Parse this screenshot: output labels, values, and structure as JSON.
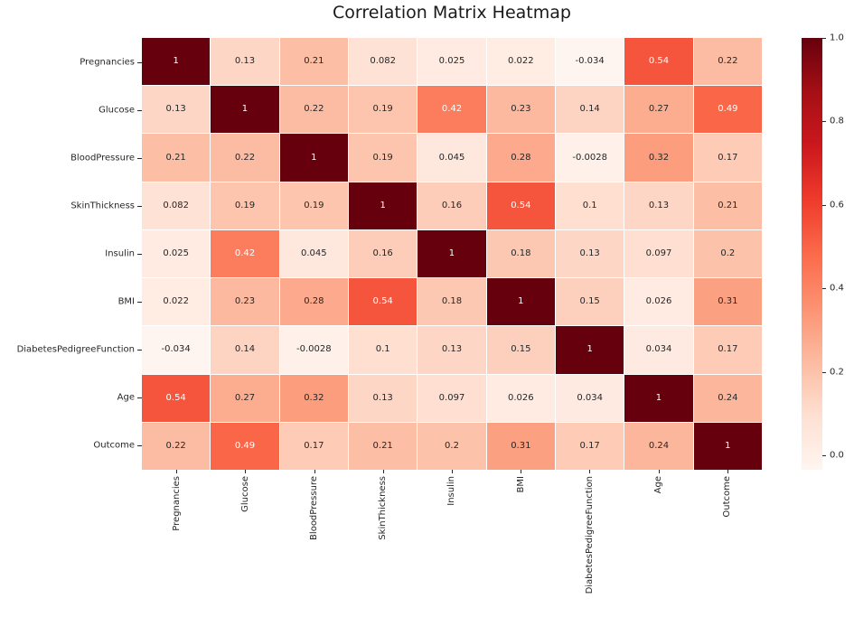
{
  "figure": {
    "background": "#ffffff",
    "text_color": "#262626",
    "title_color": "#1a1a1a"
  },
  "chart_data": {
    "type": "heatmap",
    "title": "Correlation Matrix Heatmap",
    "xlabel": "",
    "ylabel": "",
    "grid": false,
    "annotated": true,
    "categories": [
      "Pregnancies",
      "Glucose",
      "BloodPressure",
      "SkinThickness",
      "Insulin",
      "BMI",
      "DiabetesPedigreeFunction",
      "Age",
      "Outcome"
    ],
    "matrix": [
      [
        1,
        0.13,
        0.21,
        0.082,
        0.025,
        0.022,
        -0.034,
        0.54,
        0.22
      ],
      [
        0.13,
        1,
        0.22,
        0.19,
        0.42,
        0.23,
        0.14,
        0.27,
        0.49
      ],
      [
        0.21,
        0.22,
        1,
        0.19,
        0.045,
        0.28,
        -0.0028,
        0.32,
        0.17
      ],
      [
        0.082,
        0.19,
        0.19,
        1,
        0.16,
        0.54,
        0.1,
        0.13,
        0.21
      ],
      [
        0.025,
        0.42,
        0.045,
        0.16,
        1,
        0.18,
        0.13,
        0.097,
        0.2
      ],
      [
        0.022,
        0.23,
        0.28,
        0.54,
        0.18,
        1,
        0.15,
        0.026,
        0.31
      ],
      [
        -0.034,
        0.14,
        -0.0028,
        0.1,
        0.13,
        0.15,
        1,
        0.034,
        0.17
      ],
      [
        0.54,
        0.27,
        0.32,
        0.13,
        0.097,
        0.026,
        0.034,
        1,
        0.24
      ],
      [
        0.22,
        0.49,
        0.17,
        0.21,
        0.2,
        0.31,
        0.17,
        0.24,
        1
      ]
    ],
    "vmin": -0.034,
    "vmax": 1.0,
    "colormap": {
      "name": "Reds",
      "stops": [
        "#fff5f0",
        "#fee0d2",
        "#fcbba1",
        "#fc9272",
        "#fb6a4a",
        "#ef3b2c",
        "#cb181d",
        "#a50f15",
        "#67000d"
      ]
    },
    "annotation_text_colors": {
      "dark": "#262626",
      "light": "#ffffff"
    },
    "colorbar": {
      "position": "right",
      "ticks": [
        {
          "value": 1.0,
          "label": "1.0"
        },
        {
          "value": 0.8,
          "label": "0.8"
        },
        {
          "value": 0.6,
          "label": "0.6"
        },
        {
          "value": 0.4,
          "label": "0.4"
        },
        {
          "value": 0.2,
          "label": "0.2"
        },
        {
          "value": 0.0,
          "label": "0.0"
        }
      ]
    }
  }
}
